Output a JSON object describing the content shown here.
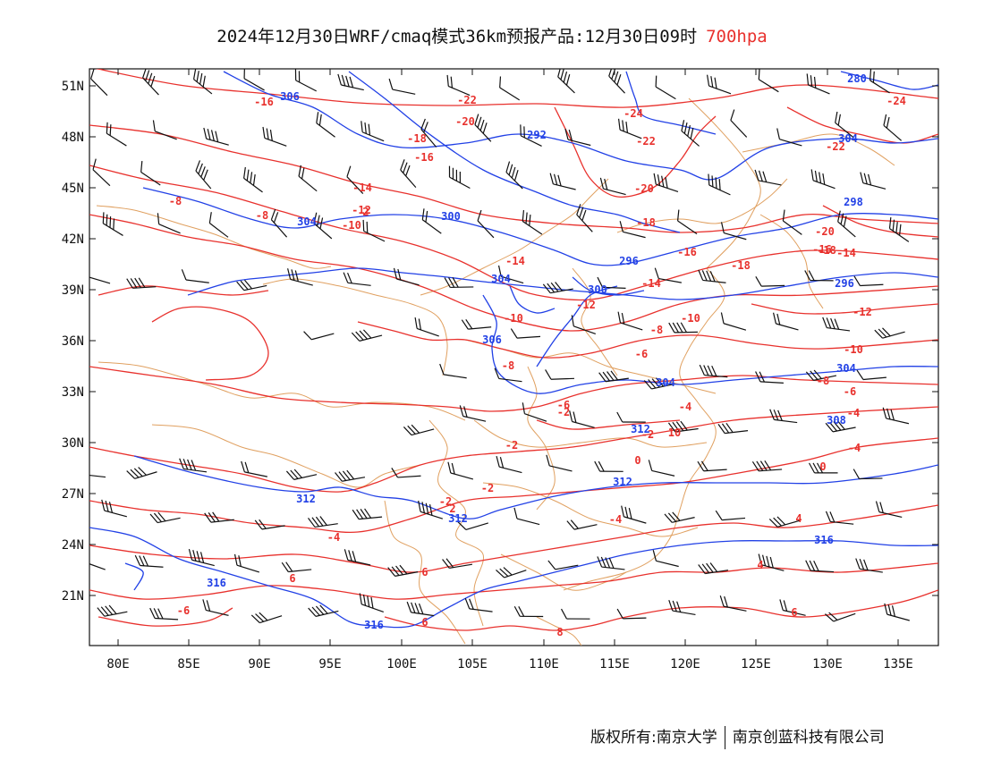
{
  "title": {
    "main": "2024年12月30日WRF/cmaq模式36km预报产品:12月30日09时",
    "level": "700hpa"
  },
  "axes": {
    "lat_labels": [
      "51N",
      "48N",
      "45N",
      "42N",
      "39N",
      "36N",
      "33N",
      "30N",
      "27N",
      "24N",
      "21N"
    ],
    "lon_labels": [
      "80E",
      "85E",
      "90E",
      "95E",
      "100E",
      "105E",
      "110E",
      "115E",
      "120E",
      "125E",
      "130E",
      "135E"
    ]
  },
  "colors": {
    "temperature": "#e8312d",
    "height": "#2241e6",
    "boundary": "#e0a060",
    "wind": "#111111"
  },
  "temperature_labels": [
    "-16",
    "-22",
    "-20",
    "-24",
    "-18",
    "-16",
    "-22",
    "-22",
    "-24",
    "-14",
    "-20",
    "-8",
    "-12",
    "-10",
    "-8",
    "-18",
    "-16",
    "-20",
    "-18",
    "-16",
    "-14",
    "-18",
    "-14",
    "-12",
    "-10",
    "-10",
    "-12",
    "-14",
    "-8",
    "-6",
    "-8",
    "-10",
    "-8",
    "-6",
    "-4",
    "-6",
    "-4",
    "-2",
    "-4",
    "-2",
    "-2",
    "0",
    "-2",
    "-4",
    "0",
    "2",
    "-4",
    "6",
    "4",
    "6",
    "-2",
    "4",
    "-6",
    "6",
    "6",
    "8",
    "10",
    "2"
  ],
  "height_labels": [
    "306",
    "280",
    "292",
    "304",
    "304",
    "300",
    "296",
    "296",
    "304",
    "300",
    "306",
    "304",
    "304",
    "308",
    "312",
    "312",
    "312",
    "316",
    "316",
    "312",
    "316",
    "298"
  ],
  "footer": {
    "left": "版权所有:南京大学",
    "right": "南京创蓝科技有限公司"
  }
}
